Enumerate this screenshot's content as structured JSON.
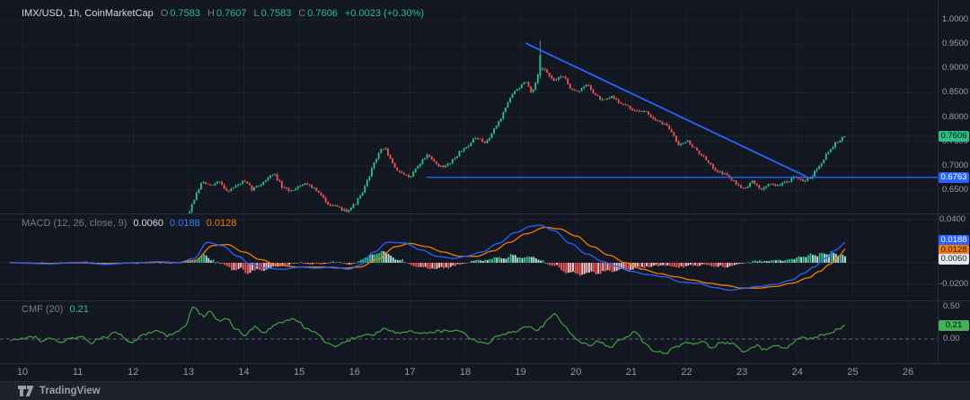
{
  "header": {
    "symbol": "IMX/USD, 1h, CoinMarketCap",
    "ohlc": {
      "o_label": "O",
      "o": "0.7583",
      "h_label": "H",
      "h": "0.7607",
      "l_label": "L",
      "l": "0.7583",
      "c_label": "C",
      "c": "0.7606",
      "change": "+0.0023 (+0.30%)"
    }
  },
  "indicators": {
    "macd": {
      "label": "MACD (12, 26, close, 9)",
      "hist_value": "0.0060",
      "macd_value": "0.0188",
      "signal_value": "0.0128"
    },
    "cmf": {
      "label": "CMF (20)",
      "value": "0.21"
    }
  },
  "axes": {
    "price_ticks": [
      "1.0000",
      "0.9500",
      "0.9000",
      "0.8500",
      "0.8000",
      "0.7500",
      "0.7000",
      "0.6500"
    ],
    "price_tick_values": [
      1.0,
      0.95,
      0.9,
      0.85,
      0.8,
      0.75,
      0.7,
      0.65
    ],
    "macd_ticks": [
      "0.0400",
      "0.0000",
      "-0.0200"
    ],
    "macd_tick_values": [
      0.04,
      0.0,
      -0.02
    ],
    "cmf_ticks": [
      "0.50",
      "0.00"
    ],
    "cmf_tick_values": [
      0.5,
      0.0
    ],
    "time_ticks": [
      "10",
      "11",
      "12",
      "13",
      "14",
      "15",
      "16",
      "17",
      "18",
      "19",
      "20",
      "21",
      "22",
      "23",
      "24",
      "25",
      "26"
    ]
  },
  "badges": {
    "price_close": "0.7606",
    "support_level": "0.6763",
    "macd": "0.0188",
    "signal": "0.0128",
    "histogram": "0.0060",
    "cmf": "0.21"
  },
  "footer": {
    "logo_text": "TradingView"
  },
  "colors": {
    "background": "#131722",
    "up": "#2ebd85",
    "down": "#ef5350",
    "trend": "#2962ff",
    "macd": "#2962ff",
    "signal": "#f57c00",
    "hist_pos": "#2ebd85",
    "hist_pos_pale": "#b2dfdb",
    "hist_neg": "#ef5350",
    "hist_neg_pale": "#f8c2c8",
    "cmf": "#43a047",
    "grid": "rgba(150,155,165,0.08)",
    "separator": "#2a2e39",
    "zero_dash": "#b2b5be",
    "macd_badge": "#2962ff",
    "signal_badge": "#f57c00",
    "hist_badge": "#e4e9f0",
    "cmf_badge": "#43b155"
  },
  "chart_data": [
    {
      "type": "candlestick",
      "title": "IMX/USD, 1h, CoinMarketCap",
      "x_axis_unit": "day of month",
      "xlim_days": [
        10,
        26
      ],
      "ylim": [
        0.62,
        1.005
      ],
      "start_day": 13.02,
      "end_day": 24.87,
      "ohlc_current": {
        "open": 0.7583,
        "high": 0.7607,
        "low": 0.7583,
        "close": 0.7606,
        "change": 0.0023,
        "change_pct": 0.3
      },
      "last_close": 0.7606,
      "peak_wick": {
        "day": 19.37,
        "high": 0.958
      },
      "trendline": {
        "from": [
          19.09,
          0.952
        ],
        "to": [
          24.16,
          0.678
        ]
      },
      "support_line": {
        "price": 0.6763,
        "from_day": 17.3
      },
      "price_keypoints": [
        [
          13.02,
          0.607
        ],
        [
          13.1,
          0.63
        ],
        [
          13.25,
          0.668
        ],
        [
          13.4,
          0.657
        ],
        [
          13.55,
          0.668
        ],
        [
          13.7,
          0.648
        ],
        [
          13.85,
          0.658
        ],
        [
          14.0,
          0.668
        ],
        [
          14.15,
          0.652
        ],
        [
          14.3,
          0.662
        ],
        [
          14.45,
          0.677
        ],
        [
          14.55,
          0.683
        ],
        [
          14.7,
          0.654
        ],
        [
          14.85,
          0.648
        ],
        [
          15.0,
          0.66
        ],
        [
          15.15,
          0.664
        ],
        [
          15.3,
          0.65
        ],
        [
          15.5,
          0.625
        ],
        [
          15.7,
          0.613
        ],
        [
          15.85,
          0.608
        ],
        [
          16.0,
          0.62
        ],
        [
          16.15,
          0.645
        ],
        [
          16.3,
          0.69
        ],
        [
          16.45,
          0.73
        ],
        [
          16.55,
          0.737
        ],
        [
          16.7,
          0.7
        ],
        [
          16.85,
          0.682
        ],
        [
          17.0,
          0.678
        ],
        [
          17.15,
          0.7
        ],
        [
          17.3,
          0.722
        ],
        [
          17.45,
          0.706
        ],
        [
          17.6,
          0.695
        ],
        [
          17.75,
          0.71
        ],
        [
          17.9,
          0.728
        ],
        [
          18.05,
          0.742
        ],
        [
          18.2,
          0.758
        ],
        [
          18.35,
          0.745
        ],
        [
          18.5,
          0.77
        ],
        [
          18.65,
          0.8
        ],
        [
          18.8,
          0.838
        ],
        [
          18.95,
          0.86
        ],
        [
          19.1,
          0.872
        ],
        [
          19.2,
          0.845
        ],
        [
          19.37,
          0.905
        ],
        [
          19.5,
          0.888
        ],
        [
          19.6,
          0.872
        ],
        [
          19.75,
          0.888
        ],
        [
          19.9,
          0.86
        ],
        [
          20.05,
          0.852
        ],
        [
          20.2,
          0.868
        ],
        [
          20.35,
          0.845
        ],
        [
          20.5,
          0.832
        ],
        [
          20.65,
          0.842
        ],
        [
          20.8,
          0.83
        ],
        [
          20.95,
          0.82
        ],
        [
          21.1,
          0.81
        ],
        [
          21.25,
          0.815
        ],
        [
          21.4,
          0.795
        ],
        [
          21.55,
          0.788
        ],
        [
          21.7,
          0.775
        ],
        [
          21.85,
          0.745
        ],
        [
          22.0,
          0.752
        ],
        [
          22.15,
          0.735
        ],
        [
          22.3,
          0.718
        ],
        [
          22.45,
          0.698
        ],
        [
          22.6,
          0.688
        ],
        [
          22.75,
          0.678
        ],
        [
          22.9,
          0.662
        ],
        [
          23.05,
          0.655
        ],
        [
          23.2,
          0.668
        ],
        [
          23.35,
          0.65
        ],
        [
          23.5,
          0.665
        ],
        [
          23.65,
          0.658
        ],
        [
          23.8,
          0.668
        ],
        [
          23.95,
          0.675
        ],
        [
          24.1,
          0.668
        ],
        [
          24.25,
          0.678
        ],
        [
          24.4,
          0.702
        ],
        [
          24.55,
          0.728
        ],
        [
          24.7,
          0.748
        ],
        [
          24.87,
          0.7606
        ]
      ]
    },
    {
      "type": "line+histogram",
      "title": "MACD (12, 26, close, 9)",
      "ylim": [
        -0.032,
        0.045
      ],
      "start_day": 9.78,
      "end_day": 24.87,
      "current": {
        "macd": 0.0188,
        "signal": 0.0128,
        "histogram": 0.006
      },
      "macd_keypoints": [
        [
          9.78,
          0.0
        ],
        [
          10.5,
          -0.001
        ],
        [
          11.0,
          0.0005
        ],
        [
          11.5,
          -0.0015
        ],
        [
          12.0,
          0.0
        ],
        [
          12.5,
          0.001
        ],
        [
          12.8,
          0.0
        ],
        [
          13.1,
          0.004
        ],
        [
          13.34,
          0.019
        ],
        [
          13.6,
          0.016
        ],
        [
          13.9,
          0.006
        ],
        [
          14.1,
          -0.001
        ],
        [
          14.4,
          -0.005
        ],
        [
          14.7,
          -0.006
        ],
        [
          15.0,
          -0.004
        ],
        [
          15.3,
          -0.005
        ],
        [
          15.6,
          -0.004
        ],
        [
          15.9,
          -0.006
        ],
        [
          16.1,
          -0.002
        ],
        [
          16.35,
          0.01
        ],
        [
          16.6,
          0.019
        ],
        [
          16.9,
          0.0185
        ],
        [
          17.2,
          0.012
        ],
        [
          17.5,
          0.006
        ],
        [
          17.8,
          0.004
        ],
        [
          18.0,
          0.006
        ],
        [
          18.3,
          0.01
        ],
        [
          18.6,
          0.018
        ],
        [
          18.9,
          0.028
        ],
        [
          19.2,
          0.034
        ],
        [
          19.35,
          0.035
        ],
        [
          19.6,
          0.03
        ],
        [
          19.9,
          0.018
        ],
        [
          20.2,
          0.008
        ],
        [
          20.5,
          0.001
        ],
        [
          20.7,
          -0.003
        ],
        [
          21.0,
          -0.008
        ],
        [
          21.3,
          -0.011
        ],
        [
          21.6,
          -0.013
        ],
        [
          21.9,
          -0.018
        ],
        [
          22.2,
          -0.019
        ],
        [
          22.5,
          -0.023
        ],
        [
          22.8,
          -0.0255
        ],
        [
          23.0,
          -0.024
        ],
        [
          23.3,
          -0.022
        ],
        [
          23.6,
          -0.02
        ],
        [
          23.9,
          -0.016
        ],
        [
          24.1,
          -0.01
        ],
        [
          24.3,
          -0.004
        ],
        [
          24.5,
          0.004
        ],
        [
          24.7,
          0.012
        ],
        [
          24.87,
          0.0188
        ]
      ],
      "signal_keypoints": [
        [
          9.78,
          0.0
        ],
        [
          10.5,
          -0.0005
        ],
        [
          11.0,
          0.0
        ],
        [
          11.5,
          -0.001
        ],
        [
          12.0,
          0.0
        ],
        [
          12.5,
          0.0005
        ],
        [
          12.8,
          0.0
        ],
        [
          13.1,
          0.002
        ],
        [
          13.45,
          0.016
        ],
        [
          13.7,
          0.017
        ],
        [
          14.0,
          0.01
        ],
        [
          14.3,
          0.003
        ],
        [
          14.6,
          -0.002
        ],
        [
          15.0,
          -0.004
        ],
        [
          15.4,
          -0.004
        ],
        [
          15.8,
          -0.005
        ],
        [
          16.1,
          -0.004
        ],
        [
          16.4,
          0.003
        ],
        [
          16.75,
          0.015
        ],
        [
          17.0,
          0.018
        ],
        [
          17.3,
          0.015
        ],
        [
          17.6,
          0.01
        ],
        [
          17.9,
          0.006
        ],
        [
          18.2,
          0.006
        ],
        [
          18.5,
          0.011
        ],
        [
          18.8,
          0.019
        ],
        [
          19.1,
          0.027
        ],
        [
          19.45,
          0.033
        ],
        [
          19.7,
          0.0315
        ],
        [
          20.0,
          0.025
        ],
        [
          20.3,
          0.015
        ],
        [
          20.6,
          0.007
        ],
        [
          20.9,
          0.0
        ],
        [
          21.2,
          -0.006
        ],
        [
          21.5,
          -0.01
        ],
        [
          21.8,
          -0.013
        ],
        [
          22.1,
          -0.016
        ],
        [
          22.4,
          -0.019
        ],
        [
          22.7,
          -0.021
        ],
        [
          23.0,
          -0.0235
        ],
        [
          23.3,
          -0.0235
        ],
        [
          23.6,
          -0.022
        ],
        [
          23.9,
          -0.019
        ],
        [
          24.2,
          -0.014
        ],
        [
          24.4,
          -0.008
        ],
        [
          24.6,
          -0.001
        ],
        [
          24.75,
          0.006
        ],
        [
          24.87,
          0.0128
        ]
      ]
    },
    {
      "type": "line",
      "title": "CMF (20)",
      "ylim": [
        -0.33,
        0.55
      ],
      "start_day": 9.78,
      "end_day": 24.87,
      "current": 0.21,
      "keypoints": [
        [
          9.78,
          -0.02
        ],
        [
          10.2,
          0.04
        ],
        [
          10.35,
          -0.04
        ],
        [
          10.5,
          0.02
        ],
        [
          10.7,
          -0.05
        ],
        [
          10.9,
          0.02
        ],
        [
          11.06,
          0.05
        ],
        [
          11.22,
          -0.06
        ],
        [
          11.45,
          0.02
        ],
        [
          11.7,
          0.1
        ],
        [
          11.9,
          -0.02
        ],
        [
          12.03,
          -0.04
        ],
        [
          12.2,
          0.08
        ],
        [
          12.44,
          0.14
        ],
        [
          12.6,
          0.05
        ],
        [
          12.79,
          0.1
        ],
        [
          12.95,
          0.22
        ],
        [
          13.08,
          0.5
        ],
        [
          13.28,
          0.35
        ],
        [
          13.38,
          0.42
        ],
        [
          13.54,
          0.28
        ],
        [
          13.7,
          0.33
        ],
        [
          13.86,
          0.15
        ],
        [
          14.03,
          0.05
        ],
        [
          14.19,
          0.18
        ],
        [
          14.35,
          0.08
        ],
        [
          14.55,
          0.2
        ],
        [
          14.68,
          0.27
        ],
        [
          14.95,
          0.3
        ],
        [
          15.11,
          0.18
        ],
        [
          15.32,
          0.1
        ],
        [
          15.49,
          -0.05
        ],
        [
          15.65,
          -0.13
        ],
        [
          15.81,
          -0.05
        ],
        [
          16.0,
          0.02
        ],
        [
          16.25,
          0.06
        ],
        [
          16.57,
          0.15
        ],
        [
          16.8,
          0.1
        ],
        [
          17.0,
          0.13
        ],
        [
          17.2,
          0.08
        ],
        [
          17.5,
          0.12
        ],
        [
          17.87,
          0.13
        ],
        [
          18.1,
          0.02
        ],
        [
          18.36,
          -0.08
        ],
        [
          18.6,
          0.05
        ],
        [
          18.9,
          0.12
        ],
        [
          19.1,
          0.2
        ],
        [
          19.3,
          0.15
        ],
        [
          19.61,
          0.38
        ],
        [
          19.8,
          0.2
        ],
        [
          19.94,
          0.05
        ],
        [
          20.1,
          -0.05
        ],
        [
          20.23,
          -0.1
        ],
        [
          20.39,
          -0.04
        ],
        [
          20.63,
          -0.12
        ],
        [
          20.79,
          -0.02
        ],
        [
          21.07,
          0.1
        ],
        [
          21.25,
          -0.05
        ],
        [
          21.4,
          -0.18
        ],
        [
          21.61,
          -0.22
        ],
        [
          21.82,
          -0.12
        ],
        [
          22.0,
          -0.05
        ],
        [
          22.14,
          -0.08
        ],
        [
          22.3,
          -0.02
        ],
        [
          22.47,
          -0.15
        ],
        [
          22.6,
          -0.05
        ],
        [
          22.78,
          -0.06
        ],
        [
          23.07,
          -0.2
        ],
        [
          23.25,
          -0.1
        ],
        [
          23.39,
          -0.16
        ],
        [
          23.6,
          -0.1
        ],
        [
          23.77,
          -0.16
        ],
        [
          23.93,
          -0.05
        ],
        [
          24.1,
          0.05
        ],
        [
          24.25,
          0.0
        ],
        [
          24.32,
          0.03
        ],
        [
          24.48,
          0.06
        ],
        [
          24.6,
          0.1
        ],
        [
          24.74,
          0.15
        ],
        [
          24.85,
          0.21
        ]
      ]
    }
  ]
}
